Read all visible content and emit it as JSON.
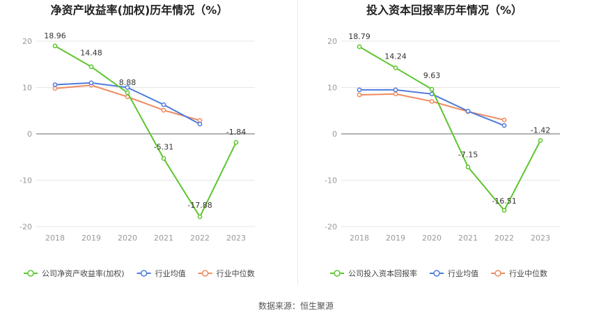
{
  "footer": {
    "source": "数据来源：恒生聚源"
  },
  "colors": {
    "company": "#5cc52e",
    "avg": "#4e7bdc",
    "median": "#f08a5d",
    "grid": "#e6e6e6",
    "axis": "#999999"
  },
  "chart_data": [
    {
      "type": "line",
      "title": "净资产收益率(加权)历年情况（%）",
      "categories": [
        "2018",
        "2019",
        "2020",
        "2021",
        "2022",
        "2023"
      ],
      "ylim": [
        -20,
        20
      ],
      "yticks": [
        20,
        10,
        0,
        -10,
        -20
      ],
      "grid": true,
      "legend_position": "bottom",
      "series": [
        {
          "name": "公司净资产收益率(加权)",
          "color": "#5cc52e",
          "values": [
            18.96,
            14.48,
            8.88,
            -5.31,
            -17.88,
            -1.84
          ],
          "labels": [
            "18.96",
            "14.48",
            "8.88",
            "-5.31",
            "-17.88",
            "-1.84"
          ]
        },
        {
          "name": "行业均值",
          "color": "#4e7bdc",
          "values": [
            10.6,
            11.0,
            10.0,
            6.3,
            2.1,
            null
          ]
        },
        {
          "name": "行业中位数",
          "color": "#f08a5d",
          "values": [
            9.8,
            10.5,
            8.0,
            5.1,
            2.9,
            null
          ]
        }
      ]
    },
    {
      "type": "line",
      "title": "投入资本回报率历年情况（%）",
      "categories": [
        "2018",
        "2019",
        "2020",
        "2021",
        "2022",
        "2023"
      ],
      "ylim": [
        -20,
        20
      ],
      "yticks": [
        20,
        10,
        0,
        -10,
        -20
      ],
      "grid": true,
      "legend_position": "bottom",
      "series": [
        {
          "name": "公司投入资本回报率",
          "color": "#5cc52e",
          "values": [
            18.79,
            14.24,
            9.63,
            -7.15,
            -16.51,
            -1.42
          ],
          "labels": [
            "18.79",
            "14.24",
            "9.63",
            "-7.15",
            "-16.51",
            "-1.42"
          ]
        },
        {
          "name": "行业均值",
          "color": "#4e7bdc",
          "values": [
            9.5,
            9.5,
            8.6,
            4.9,
            1.8,
            null
          ]
        },
        {
          "name": "行业中位数",
          "color": "#f08a5d",
          "values": [
            8.4,
            8.6,
            7.0,
            4.8,
            3.0,
            null
          ]
        }
      ]
    }
  ]
}
